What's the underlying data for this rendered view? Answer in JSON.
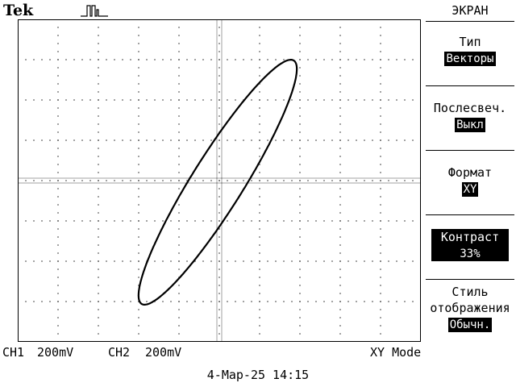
{
  "header": {
    "brand": "Tek",
    "trigger_icon": "pulse-icon"
  },
  "menu": {
    "title": "ЭКРАН",
    "items": [
      {
        "label": "Тип",
        "value": "Векторы"
      },
      {
        "label": "Послесвеч.",
        "value": "Выкл"
      },
      {
        "label": "Формат",
        "value": "XY"
      },
      {
        "label": "Контраст",
        "value": "33%"
      },
      {
        "label": "Стиль",
        "label2": "отображения",
        "value": "Обычн."
      }
    ]
  },
  "status": {
    "ch1_label": "CH1",
    "ch1_scale": "200mV",
    "ch2_label": "CH2",
    "ch2_scale": "200mV",
    "mode": "XY Mode",
    "date": "4-Мар-25 14:15"
  },
  "trace": {
    "type": "xy-ellipse",
    "color": "#000000"
  }
}
